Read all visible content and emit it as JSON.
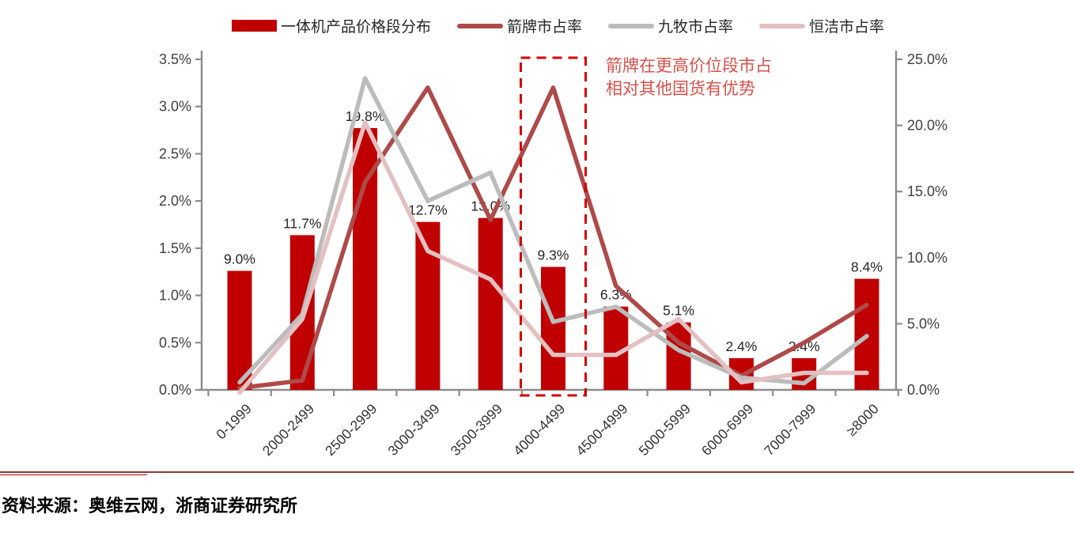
{
  "legend": {
    "items": [
      {
        "label": "一体机产品价格段分布",
        "type": "bar",
        "color": "#C00000"
      },
      {
        "label": "箭牌市占率",
        "type": "line",
        "color": "#AE4A49"
      },
      {
        "label": "九牧市占率",
        "type": "line",
        "color": "#BCBCBC"
      },
      {
        "label": "恒洁市占率",
        "type": "line",
        "color": "#E3C0C2"
      }
    ]
  },
  "annotation": {
    "line1": "箭牌在更高价位段市占",
    "line2": "相对其他国货有优势",
    "color": "#D8504A"
  },
  "source": {
    "label": "资料来源：奥维云网，浙商证券研究所"
  },
  "chart_data": {
    "type": "bar+line",
    "title": "",
    "categories": [
      "0-1999",
      "2000-2499",
      "2500-2999",
      "3000-3499",
      "3500-3999",
      "4000-4499",
      "4500-4999",
      "5000-5999",
      "6000-6999",
      "7000-7999",
      "≥8000"
    ],
    "bars": {
      "name": "一体机产品价格段分布",
      "axis": "right",
      "color": "#C00000",
      "values": [
        9.0,
        11.7,
        19.8,
        12.7,
        13.0,
        9.3,
        6.3,
        5.1,
        2.4,
        2.4,
        8.4
      ],
      "labels": [
        "9.0%",
        "11.7%",
        "19.8%",
        "12.7%",
        "13.0%",
        "9.3%",
        "6.3%",
        "5.1%",
        "2.4%",
        "2.4%",
        "8.4%"
      ]
    },
    "series": [
      {
        "name": "箭牌市占率",
        "axis": "left",
        "color": "#AE4A49",
        "values": [
          0.02,
          0.1,
          2.2,
          3.2,
          1.8,
          3.2,
          1.1,
          0.5,
          0.15,
          0.5,
          0.9
        ]
      },
      {
        "name": "九牧市占率",
        "axis": "left",
        "color": "#BCBCBC",
        "values": [
          0.08,
          0.8,
          3.3,
          2.0,
          2.3,
          0.72,
          0.88,
          0.42,
          0.13,
          0.07,
          0.57
        ]
      },
      {
        "name": "恒洁市占率",
        "axis": "left",
        "color": "#E3C0C2",
        "values": [
          -0.03,
          0.75,
          2.83,
          1.47,
          1.17,
          0.37,
          0.37,
          0.75,
          0.08,
          0.18,
          0.18
        ]
      }
    ],
    "left_axis": {
      "min": 0,
      "max": 3.5,
      "step": 0.5,
      "ticks": [
        "0.0%",
        "0.5%",
        "1.0%",
        "1.5%",
        "2.0%",
        "2.5%",
        "3.0%",
        "3.5%"
      ]
    },
    "right_axis": {
      "min": 0,
      "max": 25,
      "step": 5,
      "ticks": [
        "0.0%",
        "5.0%",
        "10.0%",
        "15.0%",
        "20.0%",
        "25.0%"
      ]
    },
    "highlight_box": {
      "category": "4000-4499",
      "category_index": 5,
      "color": "#D40000"
    },
    "legend_position": "top",
    "grid": false
  }
}
